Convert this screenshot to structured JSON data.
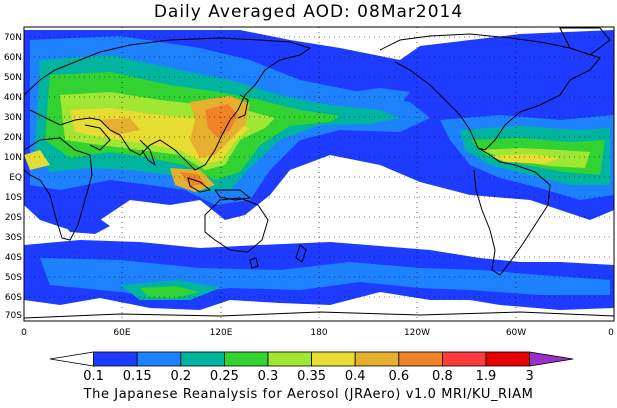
{
  "title": "Daily Averaged AOD: 08Mar2014",
  "map": {
    "lat_labels": [
      "70N",
      "60N",
      "50N",
      "40N",
      "30N",
      "20N",
      "10N",
      "EQ",
      "10S",
      "20S",
      "30S",
      "40S",
      "50S",
      "60S",
      "70S"
    ],
    "lon_labels": [
      "0",
      "60E",
      "120E",
      "180",
      "120W",
      "60W",
      "0"
    ],
    "land_outline_color": "#000000",
    "ocean_background": "#ffffff"
  },
  "colorbar": {
    "labels": [
      "0.1",
      "0.15",
      "0.2",
      "0.25",
      "0.3",
      "0.35",
      "0.4",
      "0.6",
      "0.8",
      "1.9",
      "3"
    ],
    "colors": [
      "#ffffff",
      "#1e3cff",
      "#1e82ff",
      "#00b4a0",
      "#32d232",
      "#a0e632",
      "#e6dc32",
      "#e6af2d",
      "#f08228",
      "#fa3c3c",
      "#e60000",
      "#9632c8"
    ]
  },
  "credit": "The Japanese Reanalysis for Aerosol (JRAero) v1.0 MRI/KU_RIAM"
}
